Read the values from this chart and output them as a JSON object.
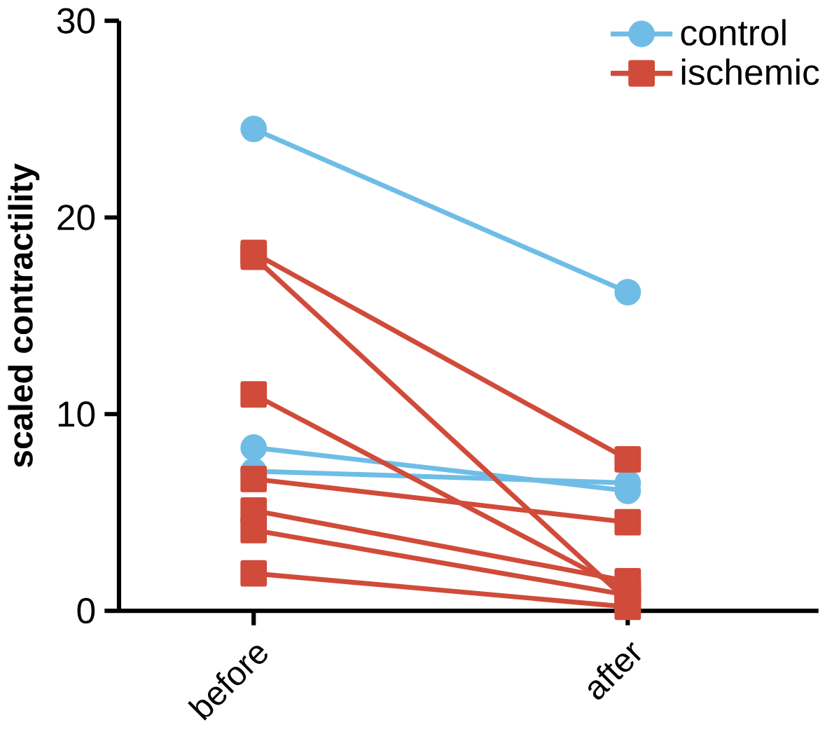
{
  "chart_data": {
    "type": "line",
    "ylabel": "scaled contractility",
    "categories": [
      "before",
      "after"
    ],
    "ylim": [
      0,
      30
    ],
    "yticks": [
      0,
      10,
      20,
      30
    ],
    "legend": "top right",
    "grid": false,
    "series": [
      {
        "name": "control",
        "color": "#6fbde6",
        "marker": "circle",
        "values": [
          24.5,
          16.2
        ]
      },
      {
        "color": "#6fbde6",
        "marker": "circle",
        "values": [
          8.3,
          6.1
        ]
      },
      {
        "color": "#6fbde6",
        "marker": "circle",
        "values": [
          7.1,
          6.5
        ]
      },
      {
        "name": "ischemic",
        "color": "#d04b3a",
        "marker": "square",
        "values": [
          18.2,
          7.7
        ]
      },
      {
        "color": "#d04b3a",
        "marker": "square",
        "values": [
          18.0,
          0.5
        ]
      },
      {
        "color": "#d04b3a",
        "marker": "square",
        "values": [
          11.0,
          1.0
        ]
      },
      {
        "color": "#d04b3a",
        "marker": "square",
        "values": [
          6.7,
          4.5
        ]
      },
      {
        "color": "#d04b3a",
        "marker": "square",
        "values": [
          5.1,
          1.5
        ]
      },
      {
        "color": "#d04b3a",
        "marker": "square",
        "values": [
          4.1,
          0.8
        ]
      },
      {
        "color": "#d04b3a",
        "marker": "square",
        "values": [
          1.9,
          0.2
        ]
      }
    ]
  }
}
